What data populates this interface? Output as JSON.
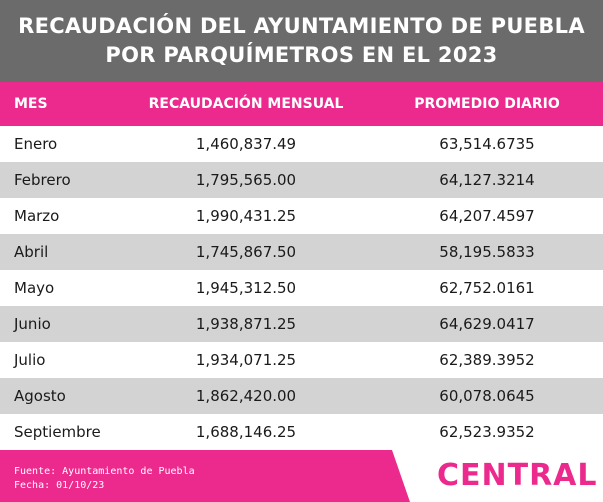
{
  "title": {
    "line1": "RECAUDACIÓN DEL AYUNTAMIENTO DE PUEBLA",
    "line2": "POR PARQUÍMETROS EN EL 2023"
  },
  "colors": {
    "header_bg": "#6b6b6b",
    "accent": "#ec2a8d",
    "row_alt": "#d3d3d3"
  },
  "chart_data": {
    "type": "table",
    "columns": [
      "MES",
      "RECAUDACIÓN MENSUAL",
      "PROMEDIO DIARIO"
    ],
    "rows": [
      [
        "Enero",
        "1,460,837.49",
        "63,514.6735"
      ],
      [
        "Febrero",
        "1,795,565.00",
        "64,127.3214"
      ],
      [
        "Marzo",
        "1,990,431.25",
        "64,207.4597"
      ],
      [
        "Abril",
        "1,745,867.50",
        "58,195.5833"
      ],
      [
        "Mayo",
        "1,945,312.50",
        "62,752.0161"
      ],
      [
        "Junio",
        "1,938,871.25",
        "64,629.0417"
      ],
      [
        "Julio",
        "1,934,071.25",
        "62,389.3952"
      ],
      [
        "Agosto",
        "1,862,420.00",
        "60,078.0645"
      ],
      [
        "Septiembre",
        "1,688,146.25",
        "62,523.9352"
      ]
    ]
  },
  "footer": {
    "source": "Fuente: Ayuntamiento de Puebla",
    "date": "Fecha: 01/10/23",
    "logo": "CENTRAL"
  }
}
